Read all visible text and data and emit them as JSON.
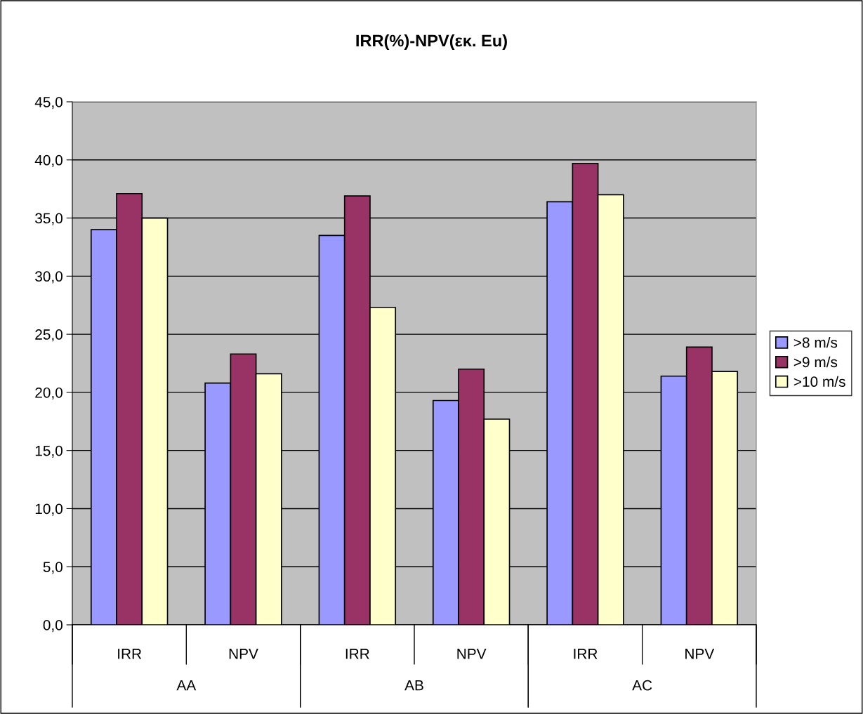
{
  "chart_data": {
    "type": "bar",
    "title": "IRR(%)-NPV(εκ. Eu)",
    "categories": [
      "IRR",
      "NPV",
      "IRR",
      "NPV",
      "IRR",
      "NPV"
    ],
    "annotations": [
      "AA",
      "AB",
      "AC"
    ],
    "series": [
      {
        "name": ">8 m/s",
        "color": "#9999ff",
        "values": [
          34.0,
          20.8,
          33.5,
          19.3,
          36.4,
          21.4
        ]
      },
      {
        "name": ">9 m/s",
        "color": "#993366",
        "values": [
          37.1,
          23.3,
          36.9,
          22.0,
          39.7,
          23.9
        ]
      },
      {
        "name": ">10 m/s",
        "color": "#ffffcc",
        "values": [
          35.0,
          21.6,
          27.3,
          17.7,
          37.0,
          21.8
        ]
      }
    ],
    "ylim": [
      0,
      45
    ],
    "yticks": [
      {
        "value": 0,
        "label": "0,0"
      },
      {
        "value": 5,
        "label": "5,0"
      },
      {
        "value": 10,
        "label": "10,0"
      },
      {
        "value": 15,
        "label": "15,0"
      },
      {
        "value": 20,
        "label": "20,0"
      },
      {
        "value": 25,
        "label": "25,0"
      },
      {
        "value": 30,
        "label": "30,0"
      },
      {
        "value": 35,
        "label": "35,0"
      },
      {
        "value": 40,
        "label": "40,0"
      },
      {
        "value": 45,
        "label": "45,0"
      }
    ],
    "grid": "y",
    "legend": "right"
  }
}
